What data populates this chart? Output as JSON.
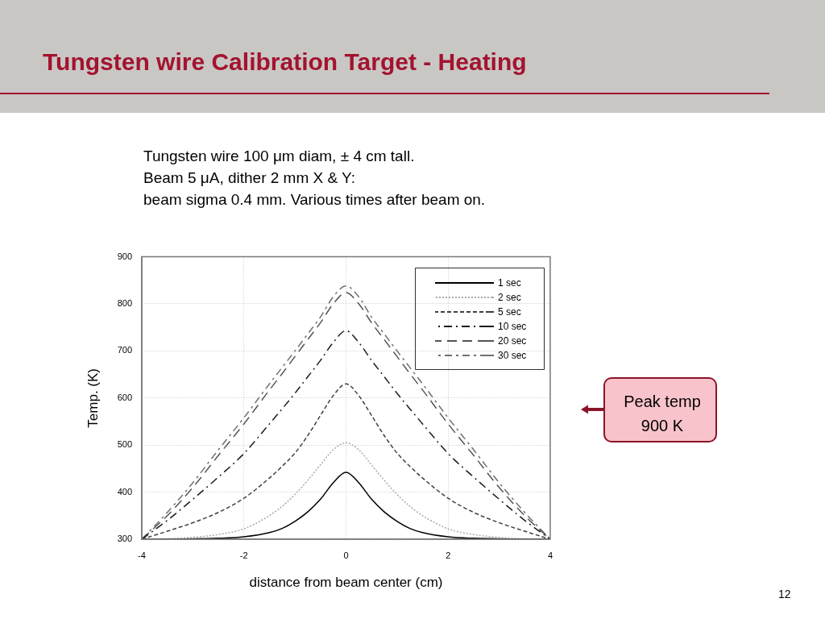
{
  "chart_data": {
    "type": "line",
    "title": "Tungsten wire Calibration Target - Heating",
    "subtitle": "Tungsten wire 100 μm diam, ± 4 cm tall.\nBeam 5 μA, dither 2 mm X & Y:\nbeam sigma 0.4 mm. Various times after beam on.",
    "xlabel": "distance from beam center (cm)",
    "ylabel": "Temp. (K)",
    "annotations": [
      "Peak temp\n900 K",
      "12"
    ],
    "x": [
      -4,
      -3.5,
      -3,
      -2.5,
      -2,
      -1.5,
      -1.25,
      -1,
      -0.75,
      -0.5,
      -0.25,
      0,
      0.25,
      0.5,
      0.75,
      1,
      1.25,
      1.5,
      2,
      2.5,
      3,
      3.5,
      4
    ],
    "series": [
      {
        "name": "1 sec",
        "color": "#000000",
        "line_style": "solid",
        "values": [
          300,
          300,
          301,
          302,
          305,
          314,
          323,
          338,
          358,
          385,
          420,
          442,
          420,
          385,
          358,
          338,
          323,
          314,
          305,
          302,
          301,
          300,
          300
        ]
      },
      {
        "name": "2 sec",
        "color": "#aaaaaa",
        "line_style": "dotted",
        "values": [
          300,
          301,
          304,
          310,
          322,
          350,
          370,
          395,
          425,
          458,
          490,
          505,
          490,
          458,
          425,
          395,
          370,
          350,
          322,
          310,
          304,
          301,
          300
        ]
      },
      {
        "name": "5 sec",
        "color": "#404040",
        "line_style": "dashed",
        "values": [
          300,
          317,
          335,
          357,
          387,
          430,
          455,
          483,
          520,
          563,
          605,
          630,
          605,
          563,
          520,
          483,
          455,
          430,
          387,
          357,
          335,
          317,
          300
        ]
      },
      {
        "name": "10 sec",
        "color": "#1c1c1c",
        "line_style": "dashed",
        "values": [
          300,
          340,
          385,
          432,
          482,
          545,
          577,
          610,
          645,
          680,
          718,
          743,
          718,
          680,
          645,
          610,
          577,
          545,
          482,
          432,
          385,
          340,
          300
        ]
      },
      {
        "name": "20 sec",
        "color": "#555555",
        "line_style": "dashed",
        "values": [
          300,
          350,
          410,
          478,
          545,
          617,
          652,
          688,
          724,
          760,
          800,
          824,
          800,
          760,
          724,
          688,
          652,
          617,
          545,
          478,
          410,
          350,
          300
        ]
      },
      {
        "name": "30 sec",
        "color": "#707070",
        "line_style": "dashed",
        "values": [
          300,
          357,
          420,
          490,
          558,
          630,
          665,
          700,
          736,
          772,
          815,
          838,
          815,
          772,
          736,
          700,
          665,
          630,
          558,
          490,
          420,
          357,
          300
        ]
      }
    ],
    "xlim": [
      -4,
      4
    ],
    "xticks": [
      -4,
      -2,
      0,
      2,
      4
    ],
    "ylim": [
      300,
      900
    ],
    "yticks": [
      300,
      400,
      500,
      600,
      700,
      800,
      900
    ],
    "grid": true,
    "legend": "top right"
  }
}
